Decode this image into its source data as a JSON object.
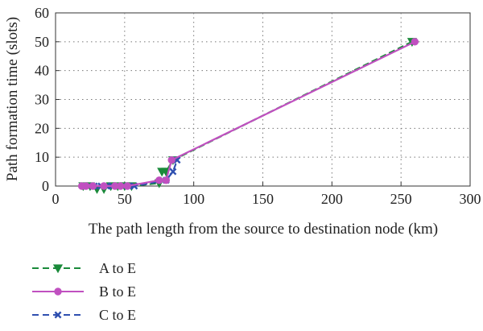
{
  "chart_data": {
    "type": "line",
    "xlabel": "The path length from the source to destination node (km)",
    "ylabel": "Path formation time (slots)",
    "xlim": [
      0,
      300
    ],
    "ylim": [
      0,
      60
    ],
    "xticks": [
      0,
      50,
      100,
      150,
      200,
      250,
      300
    ],
    "yticks": [
      0,
      10,
      20,
      30,
      40,
      50,
      60
    ],
    "grid": true,
    "legend_position": "bottom-left",
    "series": [
      {
        "name": "A to E",
        "color": "#1a8a3a",
        "marker": "triangle-down",
        "dash": true,
        "x": [
          20,
          25,
          30,
          35,
          40,
          45,
          50,
          55,
          75,
          77,
          80,
          85,
          258
        ],
        "y": [
          0,
          0,
          -1,
          -1,
          0,
          0,
          0,
          0,
          1,
          5,
          5,
          9,
          50
        ]
      },
      {
        "name": "B to E",
        "color": "#c050c0",
        "marker": "circle",
        "dash": false,
        "x": [
          19,
          22,
          27,
          35,
          43,
          47,
          52,
          75,
          80,
          84,
          260
        ],
        "y": [
          0,
          0,
          0,
          0,
          0,
          0,
          0,
          2,
          2,
          9,
          50
        ]
      },
      {
        "name": "C to E",
        "color": "#3050b0",
        "marker": "x",
        "dash": true,
        "x": [
          20,
          24,
          28,
          33,
          37,
          41,
          45,
          49,
          53,
          57,
          80,
          85,
          88
        ],
        "y": [
          0,
          0,
          0,
          0,
          0,
          0,
          0,
          0,
          0,
          0,
          2,
          5,
          9
        ]
      }
    ]
  }
}
